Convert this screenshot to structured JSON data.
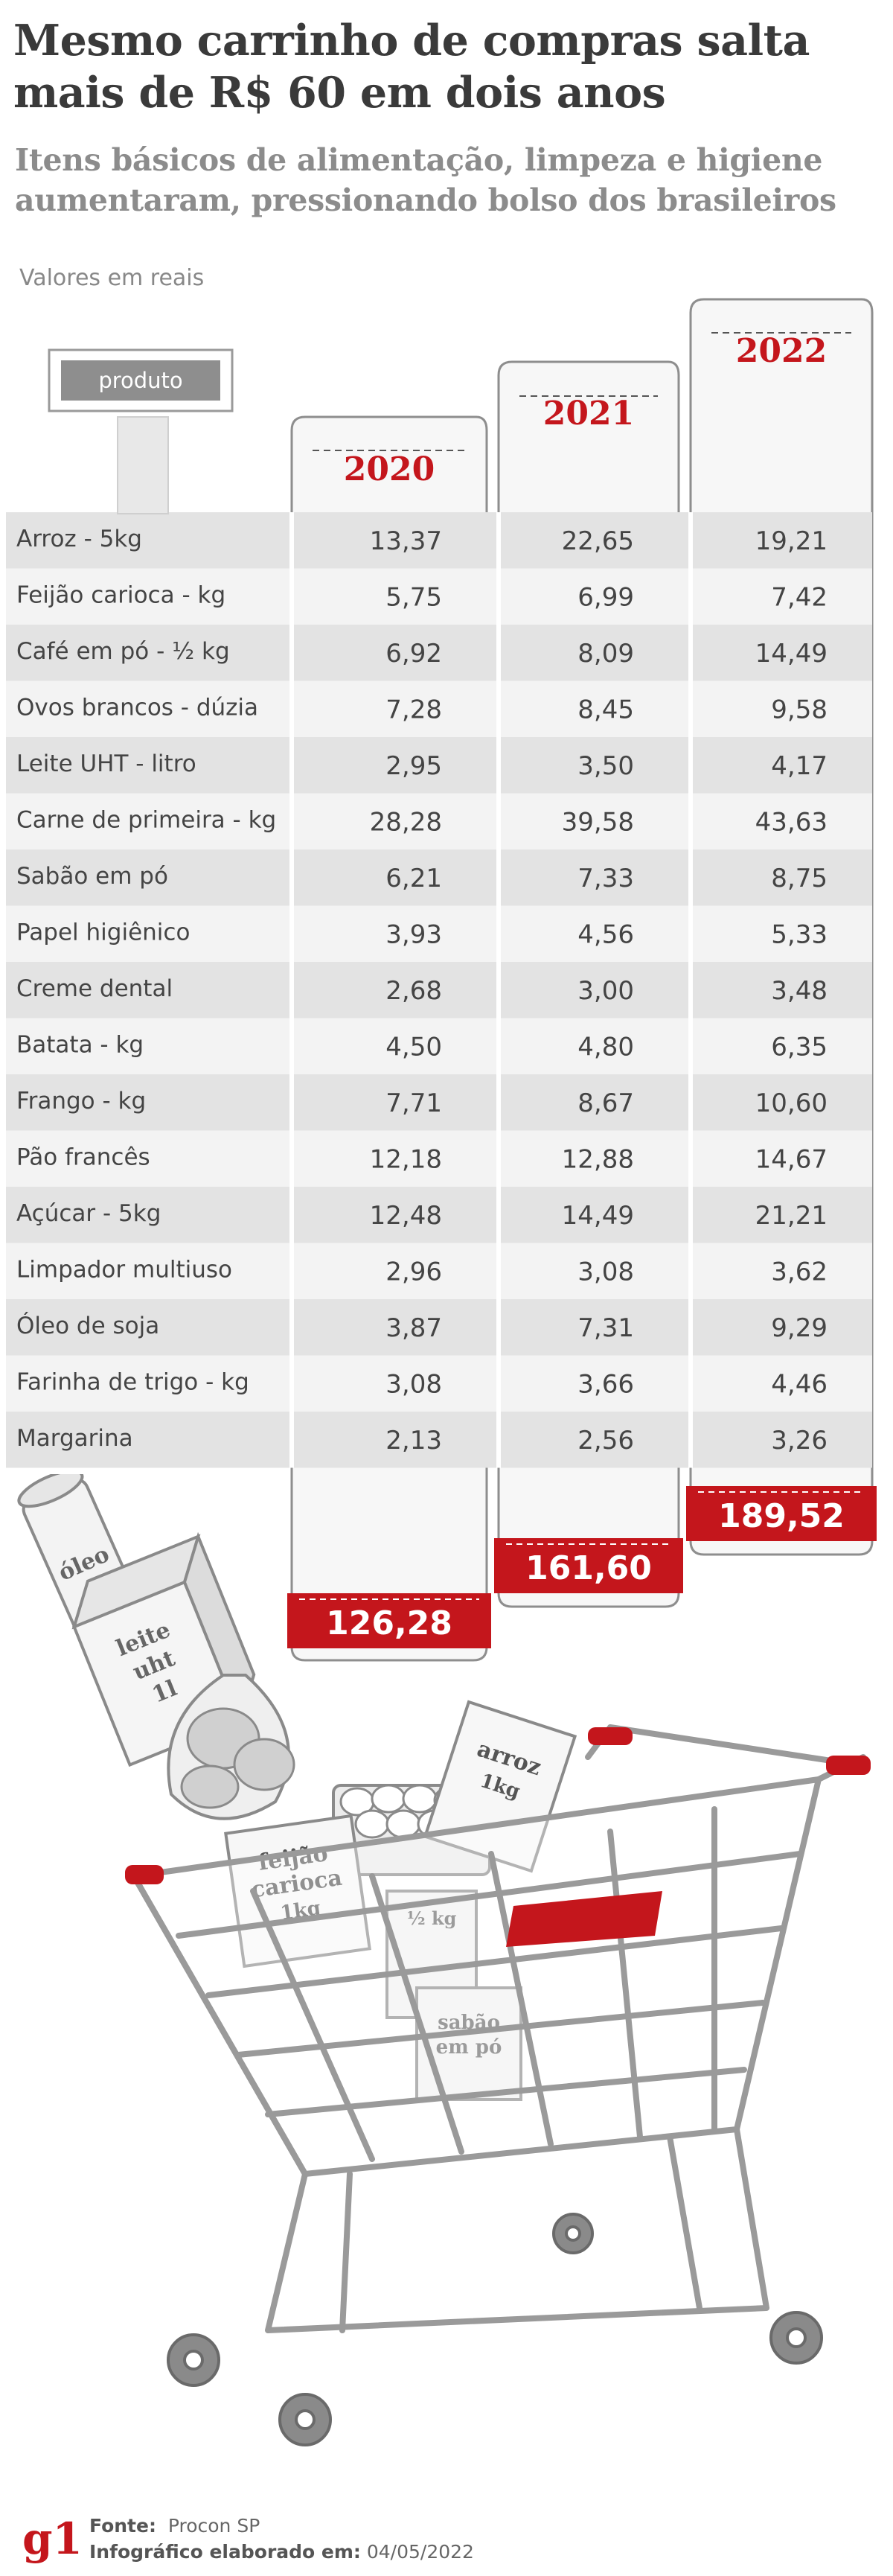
{
  "header": {
    "title": "Mesmo carrinho de compras salta mais de R$ 60 em dois anos",
    "subtitle": "Itens básicos de alimentação, limpeza e higiene aumentaram, pressionando bolso dos brasileiros",
    "units_note": "Valores em reais"
  },
  "column_header_label": "produto",
  "chart_data": {
    "type": "table",
    "columns": [
      "2020",
      "2021",
      "2022"
    ],
    "rows": [
      {
        "produto": "Arroz - 5kg",
        "values": [
          "13,37",
          "22,65",
          "19,21"
        ]
      },
      {
        "produto": "Feijão carioca - kg",
        "values": [
          "5,75",
          "6,99",
          "7,42"
        ]
      },
      {
        "produto": "Café em pó - ½ kg",
        "values": [
          "6,92",
          "8,09",
          "14,49"
        ]
      },
      {
        "produto": "Ovos brancos - dúzia",
        "values": [
          "7,28",
          "8,45",
          "9,58"
        ]
      },
      {
        "produto": "Leite UHT - litro",
        "values": [
          "2,95",
          "3,50",
          "4,17"
        ]
      },
      {
        "produto": "Carne de primeira - kg",
        "values": [
          "28,28",
          "39,58",
          "43,63"
        ]
      },
      {
        "produto": "Sabão em pó",
        "values": [
          "6,21",
          "7,33",
          "8,75"
        ]
      },
      {
        "produto": "Papel higiênico",
        "values": [
          "3,93",
          "4,56",
          "5,33"
        ]
      },
      {
        "produto": "Creme dental",
        "values": [
          "2,68",
          "3,00",
          "3,48"
        ]
      },
      {
        "produto": "Batata - kg",
        "values": [
          "4,50",
          "4,80",
          "6,35"
        ]
      },
      {
        "produto": "Frango - kg",
        "values": [
          "7,71",
          "8,67",
          "10,60"
        ]
      },
      {
        "produto": "Pão francês",
        "values": [
          "12,18",
          "12,88",
          "14,67"
        ]
      },
      {
        "produto": "Açúcar - 5kg",
        "values": [
          "12,48",
          "14,49",
          "21,21"
        ]
      },
      {
        "produto": "Limpador multiuso",
        "values": [
          "2,96",
          "3,08",
          "3,62"
        ]
      },
      {
        "produto": "Óleo de soja",
        "values": [
          "3,87",
          "7,31",
          "9,29"
        ]
      },
      {
        "produto": "Farinha de trigo - kg",
        "values": [
          "3,08",
          "3,66",
          "4,46"
        ]
      },
      {
        "produto": "Margarina",
        "values": [
          "2,13",
          "2,56",
          "3,26"
        ]
      }
    ],
    "totals": [
      "126,28",
      "161,60",
      "189,52"
    ]
  },
  "illustration": {
    "labels": {
      "oleo": "óleo",
      "leite1": "leite",
      "leite2": "uht",
      "leite3": "1l",
      "feijao1": "feijão",
      "feijao2": "carioca",
      "feijao3": "1kg",
      "arroz1": "arroz",
      "arroz2": "1kg",
      "sabao1": "sabão",
      "sabao2": "em pó",
      "halfkg": "½ kg"
    }
  },
  "footer": {
    "logo": "g1",
    "source_label": "Fonte:",
    "source_value": "Procon SP",
    "date_label": "Infográfico elaborado em:",
    "date_value": "04/05/2022"
  },
  "colors": {
    "accent": "#c4161c",
    "row_dark": "#e3e3e3",
    "row_light": "#f3f3f3",
    "receipt": "#f7f7f7",
    "text": "#444444"
  }
}
